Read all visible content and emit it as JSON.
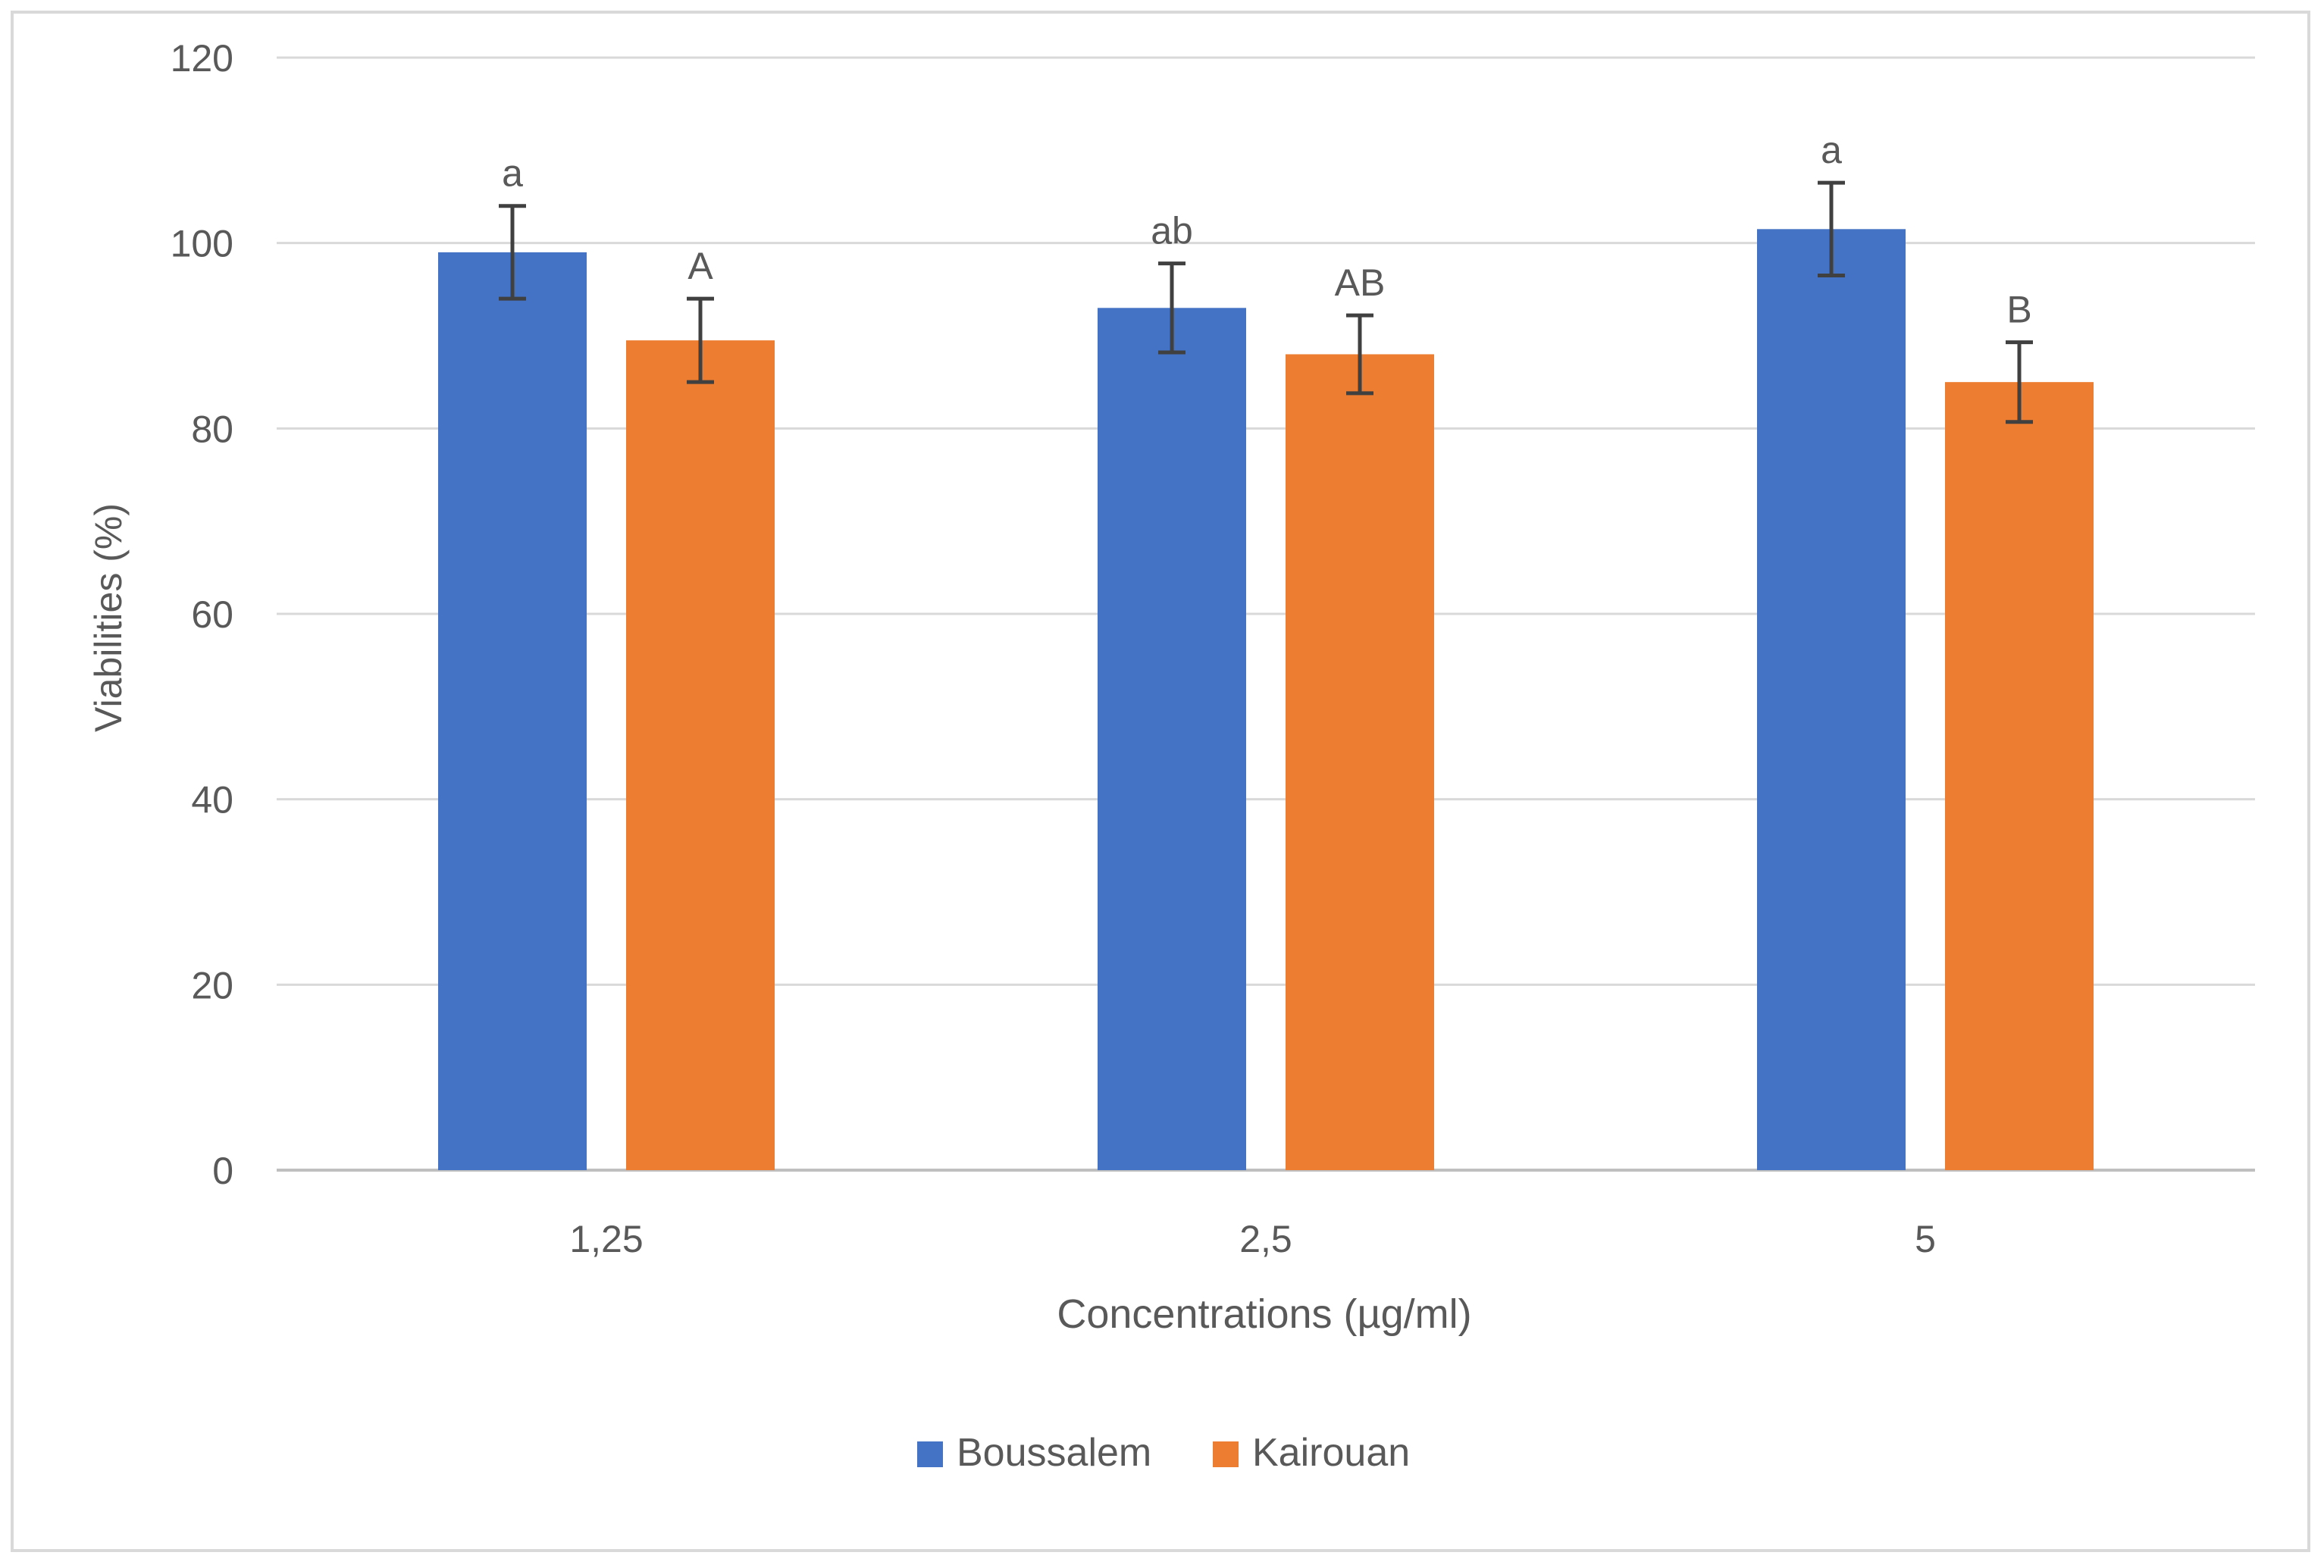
{
  "chart_data": {
    "type": "bar",
    "categories": [
      "1,25",
      "2,5",
      "5"
    ],
    "xlabel": "Concentrations (µg/ml)",
    "ylabel": "Viabilities (%)",
    "ylim": [
      0,
      120
    ],
    "yticks": [
      "0",
      "20",
      "40",
      "60",
      "80",
      "100",
      "120"
    ],
    "grid": true,
    "legend_position": "bottom-center",
    "series": [
      {
        "name": "Boussalem",
        "color": "#4472C4",
        "values": [
          99,
          93,
          101.5
        ],
        "errors": [
          5,
          4.8,
          5
        ],
        "labels": [
          "a",
          "ab",
          "a"
        ]
      },
      {
        "name": "Kairouan",
        "color": "#ED7D31",
        "values": [
          89.5,
          88,
          85
        ],
        "errors": [
          4.5,
          4.2,
          4.3
        ],
        "labels": [
          "A",
          "AB",
          "B"
        ]
      }
    ]
  }
}
